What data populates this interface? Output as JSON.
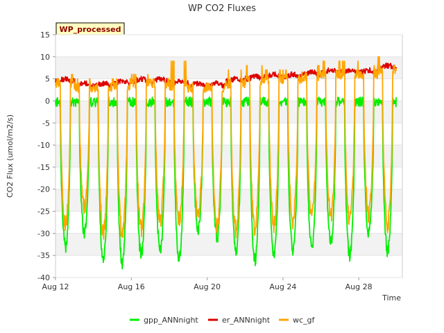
{
  "chart_data": {
    "type": "line",
    "title": "WP CO2 Fluxes",
    "xlabel": "Time",
    "ylabel": "CO2 Flux (umol/m2/s)",
    "badge": "WP_processed",
    "xlim": [
      12,
      30.3
    ],
    "ylim": [
      -40,
      15
    ],
    "y_ticks": [
      15,
      10,
      5,
      0,
      -5,
      -10,
      -15,
      -20,
      -25,
      -30,
      -35,
      -40
    ],
    "x_ticks": [
      {
        "value": 12,
        "label": "Aug 12"
      },
      {
        "value": 16,
        "label": "Aug 16"
      },
      {
        "value": 20,
        "label": "Aug 20"
      },
      {
        "value": 24,
        "label": "Aug 24"
      },
      {
        "value": 28,
        "label": "Aug 28"
      }
    ],
    "series": [
      {
        "name": "gpp_ANNnight",
        "color": "#00ee00",
        "daily_min": [
          -33,
          -30,
          -36,
          -37,
          -35,
          -34,
          -36,
          -29,
          -31,
          -34,
          -36,
          -35,
          -34,
          -33,
          -32,
          -35,
          -30,
          -34
        ],
        "night_level": 0
      },
      {
        "name": "er_ANNnight",
        "color": "#dd0000",
        "daily_mean": [
          4.5,
          3.5,
          3.5,
          4.0,
          4.5,
          4.5,
          4.0,
          3.5,
          3.5,
          4.5,
          5.0,
          5.5,
          5.5,
          6.0,
          6.5,
          6.5,
          6.5,
          7.5
        ]
      },
      {
        "name": "wc_gf",
        "color": "#ffa500",
        "daily_min": [
          -28,
          -24,
          -30,
          -30,
          -29,
          -27,
          -27,
          -26,
          -28,
          -29,
          -29,
          -28,
          -27,
          -26,
          -26,
          -27,
          -26,
          -28
        ],
        "daily_peak": [
          6,
          5,
          5,
          5,
          6,
          5,
          9,
          4,
          4,
          7,
          8,
          7,
          7,
          8,
          9,
          9,
          8,
          10
        ]
      }
    ],
    "legend": [
      "gpp_ANNnight",
      "er_ANNnight",
      "wc_gf"
    ],
    "legend_position": "bottom-center",
    "background_bands": true
  }
}
